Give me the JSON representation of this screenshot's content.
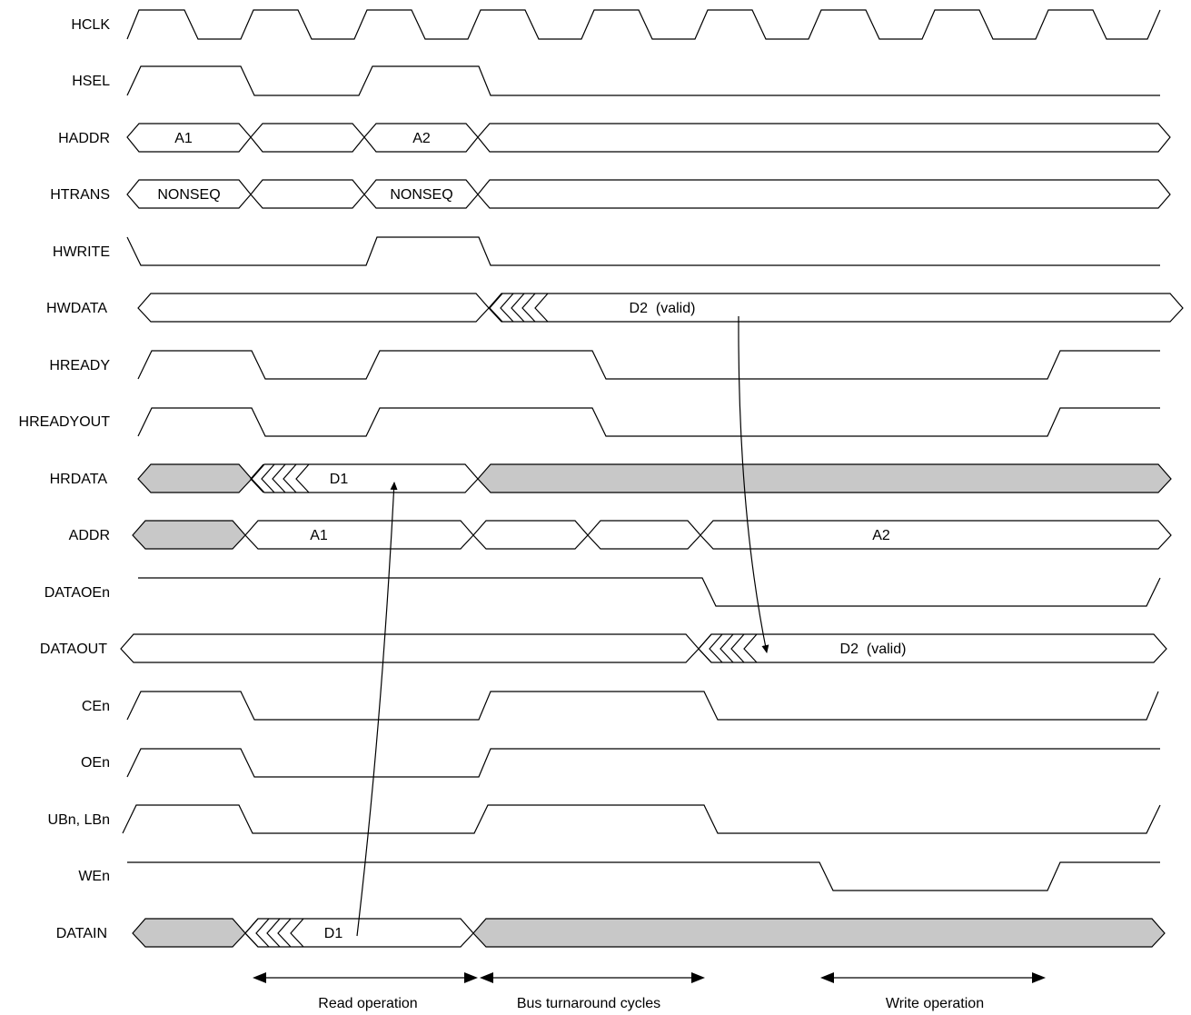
{
  "signals": [
    {
      "name": "HCLK"
    },
    {
      "name": "HSEL"
    },
    {
      "name": "HADDR",
      "bus_labels": [
        "A1",
        "A2"
      ]
    },
    {
      "name": "HTRANS",
      "bus_labels": [
        "NONSEQ",
        "NONSEQ"
      ]
    },
    {
      "name": "HWRITE"
    },
    {
      "name": "HWDATA",
      "bus_labels": [
        "D2  (valid)"
      ]
    },
    {
      "name": "HREADY"
    },
    {
      "name": "HREADYOUT"
    },
    {
      "name": "HRDATA",
      "bus_labels": [
        "D1"
      ]
    },
    {
      "name": "ADDR",
      "bus_labels": [
        "A1",
        "A2"
      ]
    },
    {
      "name": "DATAOEn"
    },
    {
      "name": "DATAOUT",
      "bus_labels": [
        "D2  (valid)"
      ]
    },
    {
      "name": "CEn"
    },
    {
      "name": "OEn"
    },
    {
      "name": "UBn, LBn"
    },
    {
      "name": "WEn"
    },
    {
      "name": "DATAIN",
      "bus_labels": [
        "D1"
      ]
    }
  ],
  "operations": [
    {
      "label": "Read operation"
    },
    {
      "label": "Bus turnaround cycles"
    },
    {
      "label": "Write operation"
    }
  ],
  "colors": {
    "line": "#000000",
    "invalid_fill": "#c8c8c8",
    "background": "#ffffff"
  }
}
